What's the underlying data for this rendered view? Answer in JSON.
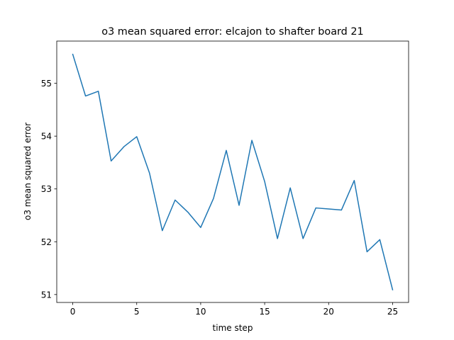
{
  "chart_data": {
    "type": "line",
    "title": "o3 mean squared error: elcajon to shafter board 21",
    "xlabel": "time step",
    "ylabel": "o3 mean squared error",
    "xlim": [
      -1.25,
      26.25
    ],
    "ylim": [
      50.85,
      55.8
    ],
    "xticks": [
      0,
      5,
      10,
      15,
      20,
      25
    ],
    "yticks": [
      51,
      52,
      53,
      54,
      55
    ],
    "grid": false,
    "series": [
      {
        "color": "#1f77b4",
        "x": [
          0,
          1,
          2,
          3,
          4,
          5,
          6,
          7,
          8,
          9,
          10,
          11,
          12,
          13,
          14,
          15,
          16,
          17,
          18,
          19,
          20,
          21,
          22,
          23,
          24,
          25
        ],
        "y": [
          55.55,
          54.76,
          54.85,
          53.53,
          53.8,
          53.99,
          53.3,
          52.21,
          52.79,
          52.56,
          52.27,
          52.82,
          53.73,
          52.69,
          53.92,
          53.14,
          52.06,
          53.02,
          52.06,
          52.64,
          52.62,
          52.6,
          53.16,
          51.81,
          52.04,
          51.09
        ]
      }
    ]
  }
}
